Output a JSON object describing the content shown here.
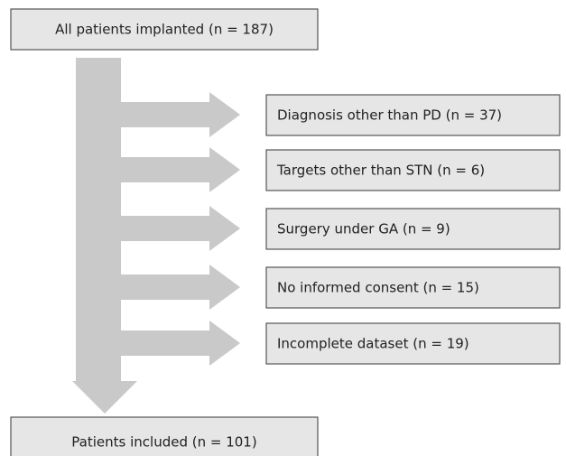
{
  "top": {
    "label": "All patients implanted (n = 187)"
  },
  "exclusions": [
    {
      "label": "Diagnosis other than PD (n = 37)"
    },
    {
      "label": "Targets other than STN (n = 6)"
    },
    {
      "label": "Surgery under GA (n = 9)"
    },
    {
      "label": "No informed consent (n = 15)"
    },
    {
      "label": "Incomplete dataset (n = 19)"
    }
  ],
  "bottom": {
    "label": "Patients included (n = 101)"
  }
}
